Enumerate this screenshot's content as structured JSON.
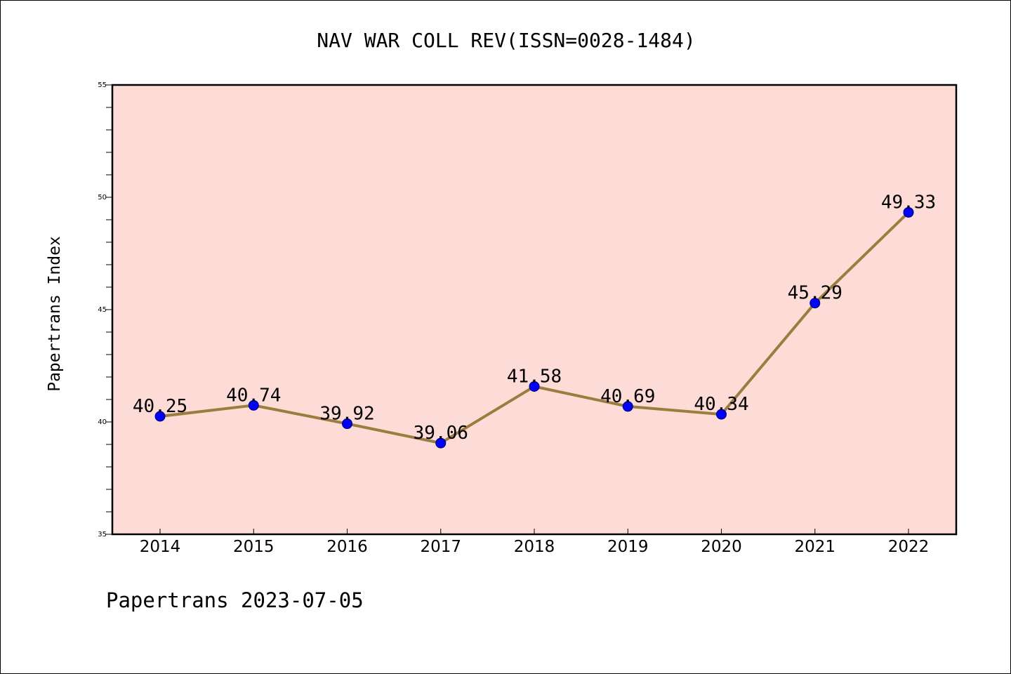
{
  "chart_data": {
    "type": "line",
    "title": "NAV WAR COLL REV(ISSN=0028-1484)",
    "xlabel": "",
    "ylabel": "Papertrans Index",
    "footer": "Papertrans 2023-07-05",
    "categories": [
      "2014",
      "2015",
      "2016",
      "2017",
      "2018",
      "2019",
      "2020",
      "2021",
      "2022"
    ],
    "values": [
      40.25,
      40.74,
      39.92,
      39.06,
      41.58,
      40.69,
      40.34,
      45.29,
      49.33
    ],
    "data_labels": [
      "40.25",
      "40.74",
      "39.92",
      "39.06",
      "41.58",
      "40.69",
      "40.34",
      "45.29",
      "49.33"
    ],
    "ylim": [
      35,
      55
    ],
    "y_ticks": [
      "35",
      "40",
      "45",
      "50",
      "55"
    ],
    "grid": false,
    "legend": "none",
    "colors": {
      "plot_background": "#fddbd7",
      "line": "#9b7d3d",
      "marker": "#0000ff",
      "axis": "#000000"
    }
  }
}
